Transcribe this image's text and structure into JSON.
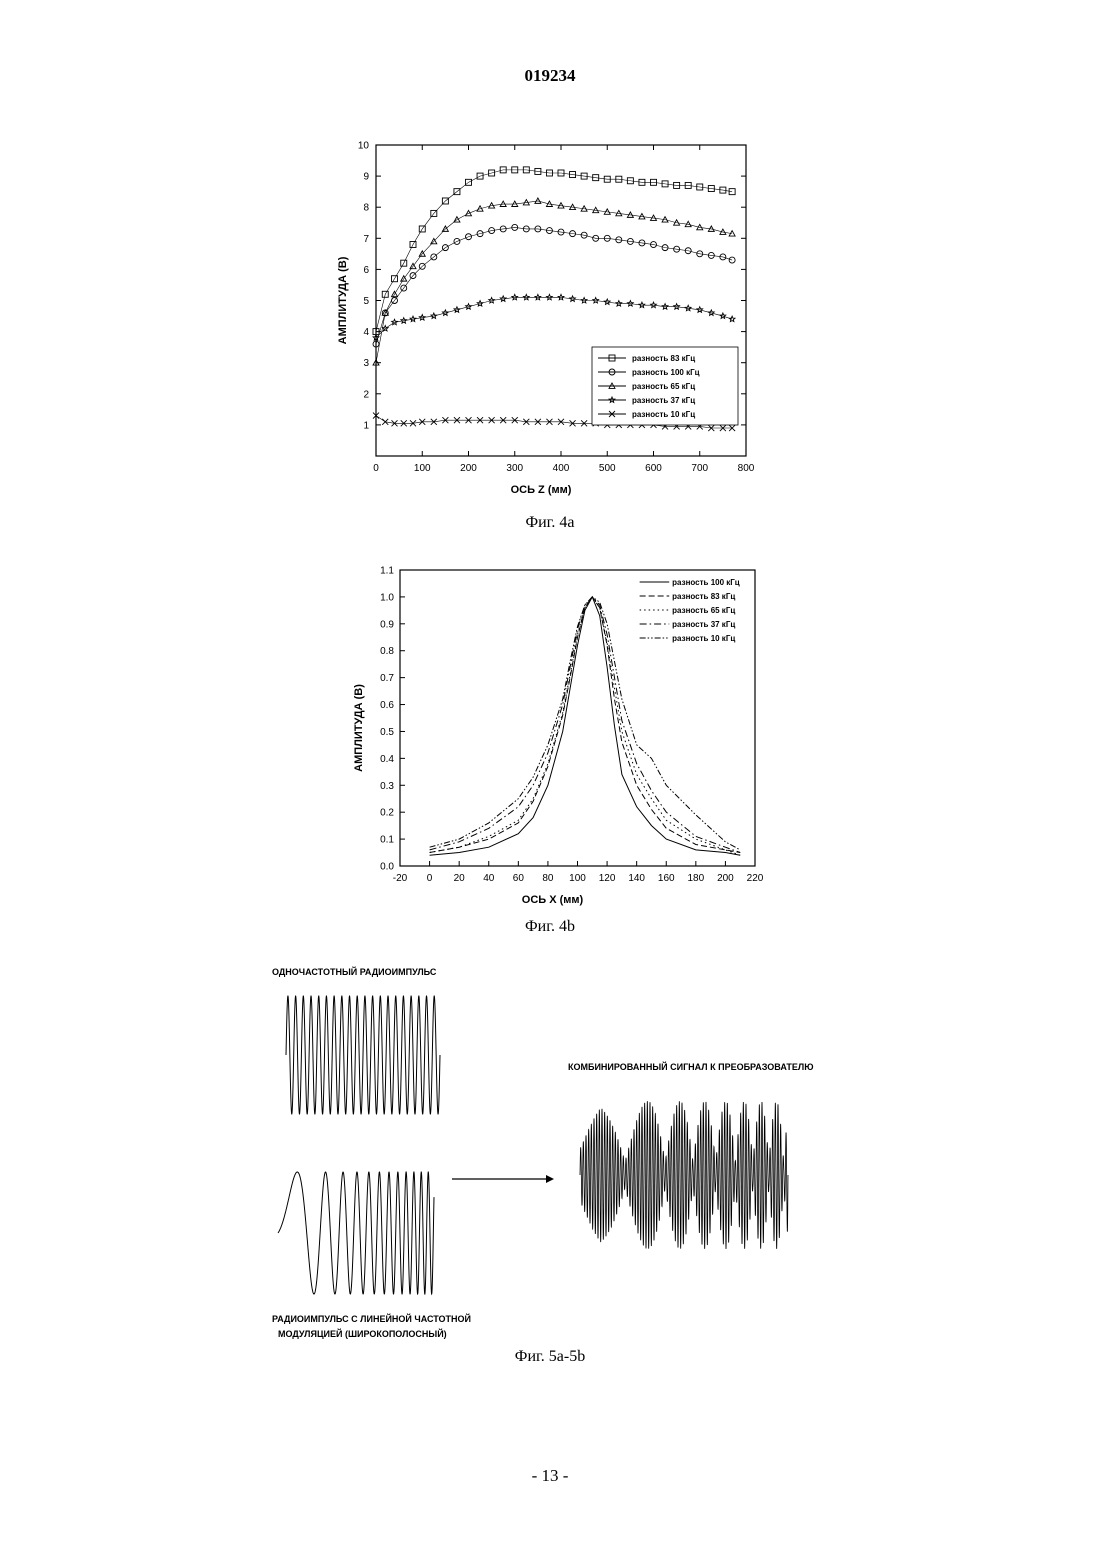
{
  "document": {
    "number": "019234",
    "page_number": "- 13 -"
  },
  "figures": {
    "fig4a_caption": "Фиг. 4a",
    "fig4b_caption": "Фиг. 4b",
    "fig5_caption": "Фиг. 5a-5b",
    "fig5_labels": {
      "single_freq": "ОДНОЧАСТОТНЫЙ РАДИОИМПУЛЬС",
      "combined": "КОМБИНИРОВАННЫЙ СИГНАЛ К ПРЕОБРАЗОВАТЕЛЮ",
      "chirp_line1": "РАДИОИМПУЛЬС С ЛИНЕЙНОЙ ЧАСТОТНОЙ",
      "chirp_line2": "МОДУЛЯЦИЕЙ (ШИРОКОПОЛОСНЫЙ)"
    }
  },
  "chart_data": [
    {
      "type": "scatter",
      "xlabel": "ОСЬ Z (мм)",
      "ylabel": "АМПЛИТУДА (В)",
      "xlim": [
        0,
        800
      ],
      "ylim": [
        0,
        10
      ],
      "xticks": [
        "0",
        "100",
        "200",
        "300",
        "400",
        "500",
        "600",
        "700",
        "800"
      ],
      "yticks": [
        "1",
        "2",
        "3",
        "4",
        "5",
        "6",
        "7",
        "8",
        "9",
        "10"
      ],
      "legend_position": "bottom-right",
      "grid": false,
      "series": [
        {
          "name": "разность 83 кГц",
          "marker": "square",
          "x": [
            0,
            20,
            40,
            60,
            80,
            100,
            125,
            150,
            175,
            200,
            225,
            250,
            275,
            300,
            325,
            350,
            375,
            400,
            425,
            450,
            475,
            500,
            525,
            550,
            575,
            600,
            625,
            650,
            675,
            700,
            725,
            750,
            770
          ],
          "y": [
            4.0,
            5.2,
            5.7,
            6.2,
            6.8,
            7.3,
            7.8,
            8.2,
            8.5,
            8.8,
            9.0,
            9.1,
            9.2,
            9.2,
            9.2,
            9.15,
            9.1,
            9.1,
            9.05,
            9.0,
            8.95,
            8.9,
            8.9,
            8.85,
            8.8,
            8.8,
            8.75,
            8.7,
            8.7,
            8.65,
            8.6,
            8.55,
            8.5
          ]
        },
        {
          "name": "разность 100 кГц",
          "marker": "circle",
          "x": [
            0,
            20,
            40,
            60,
            80,
            100,
            125,
            150,
            175,
            200,
            225,
            250,
            275,
            300,
            325,
            350,
            375,
            400,
            425,
            450,
            475,
            500,
            525,
            550,
            575,
            600,
            625,
            650,
            675,
            700,
            725,
            750,
            770
          ],
          "y": [
            3.6,
            4.6,
            5.0,
            5.4,
            5.8,
            6.1,
            6.4,
            6.7,
            6.9,
            7.05,
            7.15,
            7.25,
            7.3,
            7.35,
            7.3,
            7.3,
            7.25,
            7.2,
            7.15,
            7.1,
            7.0,
            7.0,
            6.95,
            6.9,
            6.85,
            6.8,
            6.7,
            6.65,
            6.6,
            6.5,
            6.45,
            6.4,
            6.3
          ]
        },
        {
          "name": "разность 65 кГц",
          "marker": "triangle",
          "x": [
            0,
            20,
            40,
            60,
            80,
            100,
            125,
            150,
            175,
            200,
            225,
            250,
            275,
            300,
            325,
            350,
            375,
            400,
            425,
            450,
            475,
            500,
            525,
            550,
            575,
            600,
            625,
            650,
            675,
            700,
            725,
            750,
            770
          ],
          "y": [
            3.0,
            4.6,
            5.2,
            5.7,
            6.1,
            6.5,
            6.9,
            7.3,
            7.6,
            7.8,
            7.95,
            8.05,
            8.1,
            8.1,
            8.15,
            8.2,
            8.1,
            8.05,
            8.0,
            7.95,
            7.9,
            7.85,
            7.8,
            7.75,
            7.7,
            7.65,
            7.6,
            7.5,
            7.45,
            7.35,
            7.3,
            7.2,
            7.15
          ]
        },
        {
          "name": "разность 37 кГц",
          "marker": "star",
          "x": [
            0,
            20,
            40,
            60,
            80,
            100,
            125,
            150,
            175,
            200,
            225,
            250,
            275,
            300,
            325,
            350,
            375,
            400,
            425,
            450,
            475,
            500,
            525,
            550,
            575,
            600,
            625,
            650,
            675,
            700,
            725,
            750,
            770
          ],
          "y": [
            3.8,
            4.1,
            4.3,
            4.35,
            4.4,
            4.45,
            4.5,
            4.6,
            4.7,
            4.8,
            4.9,
            5.0,
            5.05,
            5.1,
            5.1,
            5.1,
            5.1,
            5.1,
            5.05,
            5.0,
            5.0,
            4.95,
            4.9,
            4.9,
            4.85,
            4.85,
            4.8,
            4.8,
            4.75,
            4.7,
            4.6,
            4.5,
            4.4
          ]
        },
        {
          "name": "разность 10 кГц",
          "marker": "x",
          "x": [
            0,
            20,
            40,
            60,
            80,
            100,
            125,
            150,
            175,
            200,
            225,
            250,
            275,
            300,
            325,
            350,
            375,
            400,
            425,
            450,
            475,
            500,
            525,
            550,
            575,
            600,
            625,
            650,
            675,
            700,
            725,
            750,
            770
          ],
          "y": [
            1.3,
            1.1,
            1.05,
            1.05,
            1.05,
            1.1,
            1.1,
            1.15,
            1.15,
            1.15,
            1.15,
            1.15,
            1.15,
            1.15,
            1.1,
            1.1,
            1.1,
            1.1,
            1.05,
            1.05,
            1.05,
            1.0,
            1.0,
            1.0,
            1.0,
            1.0,
            0.95,
            0.95,
            0.95,
            0.95,
            0.9,
            0.9,
            0.9
          ]
        }
      ]
    },
    {
      "type": "line",
      "xlabel": "ОСЬ X (мм)",
      "ylabel": "АМПЛИТУДА (В)",
      "xlim": [
        -20,
        220
      ],
      "ylim": [
        0,
        1.1
      ],
      "xticks": [
        "-20",
        "0",
        "20",
        "40",
        "60",
        "80",
        "100",
        "120",
        "140",
        "160",
        "180",
        "200",
        "220"
      ],
      "yticks": [
        "0.0",
        "0.1",
        "0.2",
        "0.3",
        "0.4",
        "0.5",
        "0.6",
        "0.7",
        "0.8",
        "0.9",
        "1.0",
        "1.1"
      ],
      "legend_position": "top-right",
      "grid": false,
      "series": [
        {
          "name": "разность 100 кГц",
          "style": "solid",
          "x": [
            0,
            20,
            40,
            60,
            70,
            80,
            90,
            95,
            100,
            105,
            110,
            115,
            120,
            125,
            130,
            140,
            150,
            160,
            180,
            200,
            210
          ],
          "y": [
            0.04,
            0.05,
            0.07,
            0.12,
            0.18,
            0.3,
            0.5,
            0.66,
            0.82,
            0.95,
            1.0,
            0.93,
            0.74,
            0.52,
            0.34,
            0.22,
            0.15,
            0.1,
            0.06,
            0.05,
            0.04
          ]
        },
        {
          "name": "разность 83 кГц",
          "style": "dashed",
          "x": [
            0,
            20,
            40,
            60,
            70,
            80,
            90,
            95,
            100,
            105,
            110,
            115,
            120,
            125,
            130,
            140,
            150,
            160,
            180,
            200,
            210
          ],
          "y": [
            0.05,
            0.07,
            0.1,
            0.16,
            0.24,
            0.37,
            0.56,
            0.7,
            0.85,
            0.96,
            1.0,
            0.96,
            0.82,
            0.62,
            0.46,
            0.3,
            0.21,
            0.14,
            0.08,
            0.06,
            0.05
          ]
        },
        {
          "name": "разность 65 кГц",
          "style": "dotted",
          "x": [
            0,
            20,
            40,
            60,
            70,
            80,
            90,
            95,
            100,
            105,
            110,
            115,
            120,
            125,
            130,
            140,
            150,
            160,
            180,
            200,
            210
          ],
          "y": [
            0.05,
            0.07,
            0.11,
            0.17,
            0.25,
            0.38,
            0.57,
            0.71,
            0.86,
            0.96,
            1.0,
            0.96,
            0.83,
            0.66,
            0.5,
            0.34,
            0.25,
            0.17,
            0.1,
            0.06,
            0.04
          ]
        },
        {
          "name": "разность 37 кГц",
          "style": "dash-dot",
          "x": [
            0,
            20,
            40,
            60,
            70,
            80,
            90,
            95,
            100,
            105,
            110,
            115,
            120,
            125,
            130,
            140,
            150,
            160,
            180,
            200,
            210
          ],
          "y": [
            0.06,
            0.09,
            0.14,
            0.22,
            0.3,
            0.42,
            0.6,
            0.74,
            0.88,
            0.97,
            1.0,
            0.97,
            0.86,
            0.7,
            0.54,
            0.38,
            0.28,
            0.2,
            0.11,
            0.07,
            0.05
          ]
        },
        {
          "name": "разность 10 кГц",
          "style": "dash-dot-dot",
          "x": [
            0,
            20,
            40,
            60,
            70,
            80,
            90,
            95,
            100,
            105,
            110,
            115,
            120,
            125,
            130,
            140,
            150,
            160,
            180,
            200,
            210
          ],
          "y": [
            0.07,
            0.1,
            0.16,
            0.25,
            0.33,
            0.45,
            0.62,
            0.76,
            0.89,
            0.97,
            1.0,
            0.98,
            0.9,
            0.76,
            0.62,
            0.45,
            0.4,
            0.3,
            0.19,
            0.09,
            0.06
          ]
        }
      ]
    }
  ]
}
